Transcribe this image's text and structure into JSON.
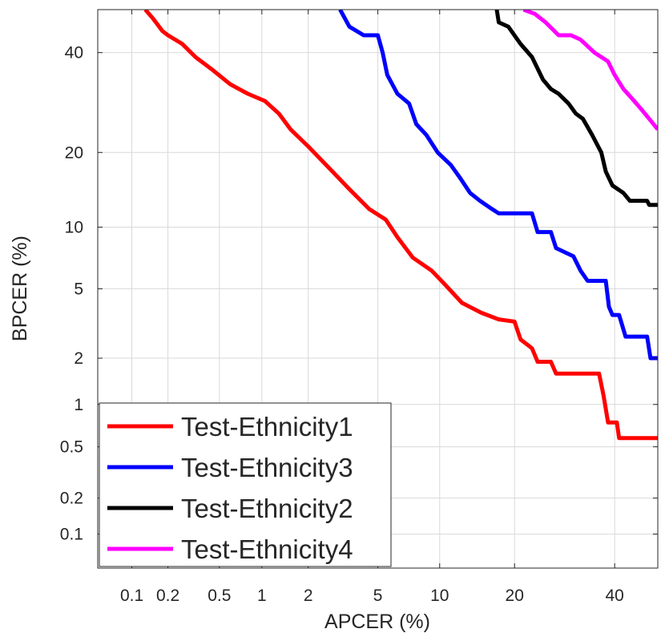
{
  "chart_data": {
    "type": "line",
    "title": "",
    "xlabel": "APCER (%)",
    "ylabel": "BPCER (%)",
    "x_scale": "probit",
    "y_scale": "probit",
    "xlim": [
      0.05,
      50
    ],
    "ylim": [
      0.05,
      50
    ],
    "x_ticks": [
      0.1,
      0.2,
      0.5,
      1,
      2,
      5,
      10,
      20,
      40
    ],
    "x_tick_labels": [
      "0.1",
      "0.2",
      "0.5",
      "1",
      "2",
      "5",
      "10",
      "20",
      "40"
    ],
    "y_ticks": [
      0.1,
      0.2,
      0.5,
      1,
      2,
      5,
      10,
      20,
      40
    ],
    "y_tick_labels": [
      "0.1",
      "0.2",
      "0.5",
      "1",
      "2",
      "5",
      "10",
      "20",
      "40"
    ],
    "grid": true,
    "legend_position": "bottom-left",
    "series": [
      {
        "name": "Test-Ethnicity1",
        "color": "#ff0000",
        "points": [
          [
            0.13,
            50
          ],
          [
            0.15,
            48
          ],
          [
            0.18,
            45
          ],
          [
            0.2,
            44
          ],
          [
            0.26,
            42
          ],
          [
            0.33,
            39
          ],
          [
            0.45,
            36
          ],
          [
            0.6,
            33
          ],
          [
            0.8,
            31
          ],
          [
            1.05,
            29.5
          ],
          [
            1.3,
            27
          ],
          [
            1.55,
            24
          ],
          [
            2.0,
            21
          ],
          [
            2.8,
            17
          ],
          [
            3.5,
            14.5
          ],
          [
            4.5,
            12
          ],
          [
            5.5,
            10.8
          ],
          [
            6.3,
            9
          ],
          [
            7.5,
            7.2
          ],
          [
            9.2,
            6.2
          ],
          [
            10.5,
            5.3
          ],
          [
            12.5,
            4.2
          ],
          [
            15,
            3.7
          ],
          [
            17.5,
            3.4
          ],
          [
            20,
            3.3
          ],
          [
            21,
            2.6
          ],
          [
            23,
            2.3
          ],
          [
            24,
            1.9
          ],
          [
            26.5,
            1.9
          ],
          [
            27.5,
            1.6
          ],
          [
            30,
            1.6
          ],
          [
            36.5,
            1.6
          ],
          [
            37.5,
            1.15
          ],
          [
            38.5,
            0.75
          ],
          [
            40.5,
            0.75
          ],
          [
            41,
            0.58
          ],
          [
            50,
            0.58
          ]
        ]
      },
      {
        "name": "Test-Ethnicity3",
        "color": "#0000ff",
        "points": [
          [
            3.1,
            50
          ],
          [
            3.5,
            46
          ],
          [
            4.2,
            44
          ],
          [
            5.0,
            44
          ],
          [
            5.3,
            40
          ],
          [
            5.6,
            35
          ],
          [
            6.3,
            31
          ],
          [
            7.2,
            29
          ],
          [
            7.8,
            25
          ],
          [
            8.7,
            23
          ],
          [
            9.8,
            20
          ],
          [
            11.2,
            18
          ],
          [
            12.3,
            16
          ],
          [
            13.5,
            14
          ],
          [
            14.8,
            13
          ],
          [
            16.5,
            12
          ],
          [
            17.5,
            11.5
          ],
          [
            23,
            11.5
          ],
          [
            24,
            9.5
          ],
          [
            26.5,
            9.5
          ],
          [
            27.5,
            8.0
          ],
          [
            31,
            7.3
          ],
          [
            32.5,
            6.2
          ],
          [
            34,
            5.5
          ],
          [
            38,
            5.5
          ],
          [
            38.7,
            4.0
          ],
          [
            39.5,
            3.6
          ],
          [
            41,
            3.6
          ],
          [
            42.5,
            2.7
          ],
          [
            47.5,
            2.7
          ],
          [
            48.3,
            2.0
          ],
          [
            50,
            2.0
          ]
        ]
      },
      {
        "name": "Test-Ethnicity2",
        "color": "#000000",
        "points": [
          [
            17.2,
            50
          ],
          [
            17.5,
            47
          ],
          [
            19,
            46
          ],
          [
            21,
            42
          ],
          [
            23,
            39
          ],
          [
            25,
            34
          ],
          [
            26.5,
            32
          ],
          [
            28,
            31
          ],
          [
            30,
            29
          ],
          [
            31.5,
            27
          ],
          [
            33,
            26
          ],
          [
            35,
            23
          ],
          [
            37,
            20
          ],
          [
            38,
            17
          ],
          [
            39.5,
            15
          ],
          [
            42,
            14
          ],
          [
            43.5,
            13
          ],
          [
            47.5,
            13
          ],
          [
            48,
            12.5
          ],
          [
            50,
            12.5
          ]
        ]
      },
      {
        "name": "Test-Ethnicity4",
        "color": "#ff00ff",
        "points": [
          [
            21.5,
            50
          ],
          [
            23.5,
            49
          ],
          [
            25.5,
            47
          ],
          [
            28,
            44
          ],
          [
            30.5,
            44
          ],
          [
            32.5,
            43
          ],
          [
            35.5,
            40
          ],
          [
            38.5,
            38
          ],
          [
            40,
            35
          ],
          [
            42,
            32
          ],
          [
            44,
            30
          ],
          [
            46,
            28
          ],
          [
            48,
            26
          ],
          [
            50,
            24
          ]
        ]
      }
    ]
  }
}
